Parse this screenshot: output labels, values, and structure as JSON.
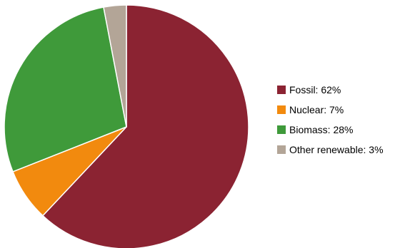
{
  "chart_data": {
    "type": "pie",
    "slices": [
      {
        "label": "Fossil: 62%",
        "name": "Fossil",
        "value": 62,
        "color": "#8B2332"
      },
      {
        "label": "Nuclear: 7%",
        "name": "Nuclear",
        "value": 7,
        "color": "#F28A0E"
      },
      {
        "label": "Biomass: 28%",
        "name": "Biomass",
        "value": 28,
        "color": "#3F9A3A"
      },
      {
        "label": "Other renewable: 3%",
        "name": "Other renewable",
        "value": 3,
        "color": "#B3A597"
      }
    ],
    "start_angle_deg": 0,
    "direction": "clockwise",
    "legend_position": "right",
    "slice_border_color": "#ffffff"
  }
}
